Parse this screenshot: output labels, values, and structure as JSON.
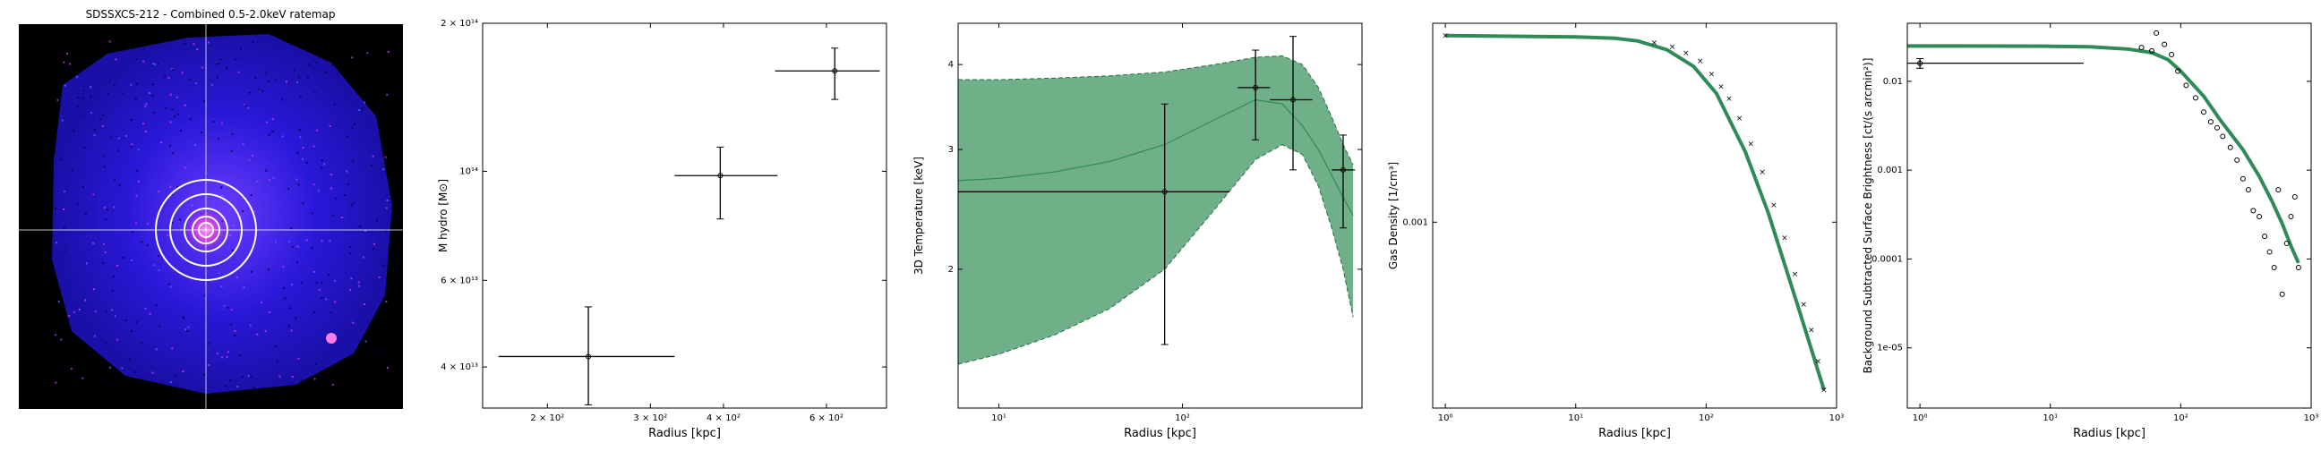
{
  "ratemap": {
    "title": "SDSSXCS-212 - Combined 0.5-2.0keV ratemap"
  },
  "chart_data": [
    {
      "type": "scatter",
      "xlabel": "Radius [kpc]",
      "ylabel": "M$_{hydro}$ [M$_\\odot$]",
      "ylabel_display": "M hydro [M⊙]",
      "xscale": "log",
      "yscale": "log",
      "xlim": [
        155,
        760
      ],
      "ylim": [
        33000000000000,
        200000000000000
      ],
      "xticks": [
        {
          "v": 200,
          "label": "2 × 10²"
        },
        {
          "v": 300,
          "label": "3 × 10²"
        },
        {
          "v": 400,
          "label": "4 × 10²"
        },
        {
          "v": 600,
          "label": "6 × 10²"
        }
      ],
      "yticks": [
        {
          "v": 40000000000000,
          "label": "4 × 10¹³"
        },
        {
          "v": 60000000000000,
          "label": "6 × 10¹³"
        },
        {
          "v": 100000000000000,
          "label": "10¹⁴"
        },
        {
          "v": 200000000000000,
          "label": "2 × 10¹⁴"
        }
      ],
      "points": [
        {
          "x": 235,
          "xlo": 165,
          "xhi": 330,
          "y": 42000000000000,
          "ylo": 33500000000000,
          "yhi": 53000000000000
        },
        {
          "x": 395,
          "xlo": 330,
          "xhi": 495,
          "y": 98000000000000,
          "ylo": 80000000000000,
          "yhi": 112000000000000
        },
        {
          "x": 620,
          "xlo": 490,
          "xhi": 740,
          "y": 160000000000000,
          "ylo": 140000000000000,
          "yhi": 178000000000000
        }
      ]
    },
    {
      "type": "line",
      "xlabel": "Radius [kpc]",
      "ylabel": "3D Temperature [keV]",
      "xscale": "log",
      "yscale": "log",
      "xlim": [
        6,
        950
      ],
      "ylim": [
        1.25,
        4.6
      ],
      "xticks": [
        {
          "v": 10,
          "label": "10¹"
        },
        {
          "v": 100,
          "label": "10²"
        }
      ],
      "yticks": [
        {
          "v": 2,
          "label": "2"
        },
        {
          "v": 3,
          "label": "3"
        },
        {
          "v": 4,
          "label": "4"
        }
      ],
      "model": {
        "x": [
          6,
          10,
          20,
          40,
          80,
          150,
          250,
          350,
          450,
          550,
          650,
          750,
          850
        ],
        "y": [
          2.7,
          2.72,
          2.78,
          2.88,
          3.05,
          3.32,
          3.55,
          3.5,
          3.25,
          3.0,
          2.75,
          2.55,
          2.4
        ],
        "lo": [
          1.45,
          1.5,
          1.6,
          1.75,
          2.0,
          2.45,
          2.9,
          3.05,
          2.95,
          2.65,
          2.3,
          2.0,
          1.7
        ],
        "hi": [
          3.8,
          3.8,
          3.82,
          3.85,
          3.9,
          4.0,
          4.1,
          4.12,
          4.0,
          3.7,
          3.35,
          3.05,
          2.85
        ]
      },
      "points": [
        {
          "x": 80,
          "xlo": 6,
          "xhi": 180,
          "y": 2.6,
          "ylo": 1.55,
          "yhi": 3.5
        },
        {
          "x": 250,
          "xlo": 200,
          "xhi": 300,
          "y": 3.7,
          "ylo": 3.1,
          "yhi": 4.2
        },
        {
          "x": 400,
          "xlo": 300,
          "xhi": 510,
          "y": 3.55,
          "ylo": 2.8,
          "yhi": 4.4
        },
        {
          "x": 750,
          "xlo": 650,
          "xhi": 870,
          "y": 2.8,
          "ylo": 2.3,
          "yhi": 3.15
        }
      ]
    },
    {
      "type": "line",
      "xlabel": "Radius [kpc]",
      "ylabel": "Gas Density [1/cm³]",
      "xscale": "log",
      "yscale": "log",
      "xlim": [
        0.8,
        1000
      ],
      "ylim": [
        0.00014,
        0.0082
      ],
      "xticks": [
        {
          "v": 1,
          "label": "10⁰"
        },
        {
          "v": 10,
          "label": "10¹"
        },
        {
          "v": 100,
          "label": "10²"
        },
        {
          "v": 1000,
          "label": "10³"
        }
      ],
      "yticks": [
        {
          "v": 0.001,
          "label": "0.001"
        }
      ],
      "model": {
        "x": [
          1,
          10,
          20,
          30,
          50,
          80,
          120,
          200,
          300,
          500,
          800
        ],
        "y": [
          0.0072,
          0.0071,
          0.007,
          0.0068,
          0.0062,
          0.0052,
          0.0039,
          0.0021,
          0.0011,
          0.00042,
          0.00017
        ]
      },
      "points_x": [
        1,
        40,
        55,
        70,
        90,
        110,
        130,
        150,
        180,
        220,
        270,
        330,
        400,
        480,
        560,
        640,
        720,
        800
      ],
      "points_y": [
        0.0072,
        0.0067,
        0.0064,
        0.006,
        0.0055,
        0.0048,
        0.0042,
        0.0037,
        0.003,
        0.0023,
        0.0017,
        0.0012,
        0.00085,
        0.00058,
        0.00042,
        0.00032,
        0.00023,
        0.00017
      ]
    },
    {
      "type": "line",
      "xlabel": "Radius [kpc]",
      "ylabel": "Background Subtracted Surface Brightness [ct/(s arcmin²)]",
      "xscale": "log",
      "yscale": "log",
      "xlim": [
        0.8,
        1000
      ],
      "ylim": [
        2.1e-06,
        0.045
      ],
      "xticks": [
        {
          "v": 1,
          "label": "10⁰"
        },
        {
          "v": 10,
          "label": "10¹"
        },
        {
          "v": 100,
          "label": "10²"
        },
        {
          "v": 1000,
          "label": "10³"
        }
      ],
      "yticks": [
        {
          "v": 1e-05,
          "label": "1e-05"
        },
        {
          "v": 0.0001,
          "label": "0.0001"
        },
        {
          "v": 0.001,
          "label": "0.001"
        },
        {
          "v": 0.01,
          "label": "0.01"
        }
      ],
      "model": {
        "x": [
          0.8,
          2,
          5,
          10,
          20,
          40,
          60,
          80,
          100,
          150,
          200,
          300,
          400,
          500,
          600,
          700,
          800
        ],
        "y": [
          0.025,
          0.025,
          0.0249,
          0.0248,
          0.0245,
          0.023,
          0.021,
          0.0175,
          0.013,
          0.0068,
          0.0037,
          0.0017,
          0.00085,
          0.00045,
          0.00025,
          0.00014,
          9e-05
        ]
      },
      "points": [
        {
          "x": 1,
          "xlo": 0.8,
          "xhi": 18,
          "y": 0.016,
          "ylo": 0.014,
          "yhi": 0.018
        },
        {
          "x": 50,
          "y": 0.024
        },
        {
          "x": 60,
          "y": 0.022
        },
        {
          "x": 65,
          "y": 0.035
        },
        {
          "x": 75,
          "y": 0.026
        },
        {
          "x": 85,
          "y": 0.02
        },
        {
          "x": 95,
          "y": 0.013
        },
        {
          "x": 110,
          "y": 0.009
        },
        {
          "x": 130,
          "y": 0.0065
        },
        {
          "x": 150,
          "y": 0.0045
        },
        {
          "x": 170,
          "y": 0.0035
        },
        {
          "x": 190,
          "y": 0.003
        },
        {
          "x": 210,
          "y": 0.0024
        },
        {
          "x": 240,
          "y": 0.0018
        },
        {
          "x": 270,
          "y": 0.0013
        },
        {
          "x": 300,
          "y": 0.0008
        },
        {
          "x": 330,
          "y": 0.0006
        },
        {
          "x": 360,
          "y": 0.00035
        },
        {
          "x": 400,
          "y": 0.0003
        },
        {
          "x": 440,
          "y": 0.00018
        },
        {
          "x": 480,
          "y": 0.00012
        },
        {
          "x": 520,
          "y": 8e-05
        },
        {
          "x": 560,
          "y": 0.0006
        },
        {
          "x": 600,
          "y": 4e-05
        },
        {
          "x": 650,
          "y": 0.00015
        },
        {
          "x": 700,
          "y": 0.0003
        },
        {
          "x": 750,
          "y": 0.0005
        },
        {
          "x": 800,
          "y": 8e-05
        }
      ]
    }
  ]
}
